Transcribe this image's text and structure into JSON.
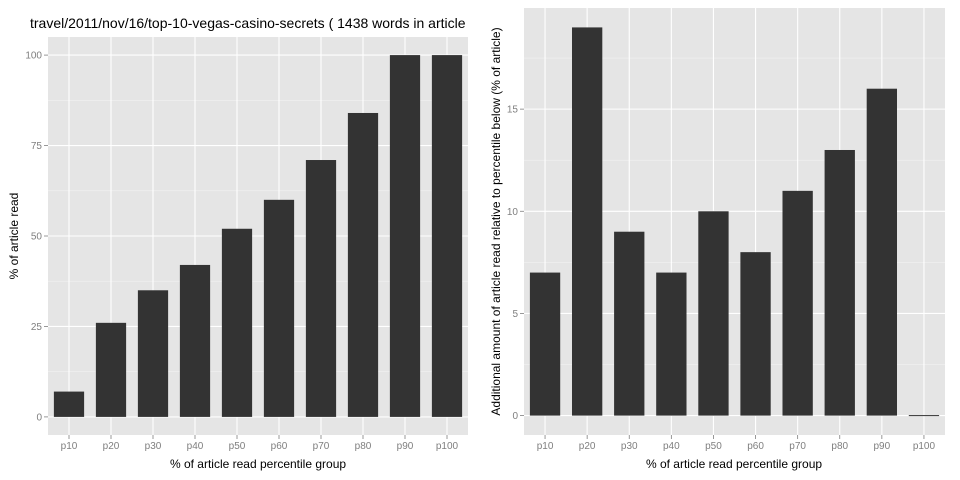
{
  "chart_data": [
    {
      "type": "bar",
      "title": "travel/2011/nov/16/top-10-vegas-casino-secrets ( 1438 words in article",
      "xlabel": "% of article read percentile group",
      "ylabel": "% of article read",
      "categories": [
        "p10",
        "p20",
        "p30",
        "p40",
        "p50",
        "p60",
        "p70",
        "p80",
        "p90",
        "p100"
      ],
      "values": [
        7,
        26,
        35,
        42,
        52,
        60,
        71,
        84,
        100,
        100
      ],
      "ylim": [
        -5,
        105
      ],
      "yticks": [
        0,
        25,
        50,
        75,
        100
      ],
      "grid": true
    },
    {
      "type": "bar",
      "title": "",
      "xlabel": "% of article read percentile group",
      "ylabel": "Additional amount of article read relative to percentile below (% of article)",
      "categories": [
        "p10",
        "p20",
        "p30",
        "p40",
        "p50",
        "p60",
        "p70",
        "p80",
        "p90",
        "p100"
      ],
      "values": [
        7,
        19,
        9,
        7,
        10,
        8,
        11,
        13,
        16,
        0
      ],
      "ylim": [
        -0.95,
        19.95
      ],
      "yticks": [
        0,
        5,
        10,
        15
      ],
      "grid": true
    }
  ]
}
